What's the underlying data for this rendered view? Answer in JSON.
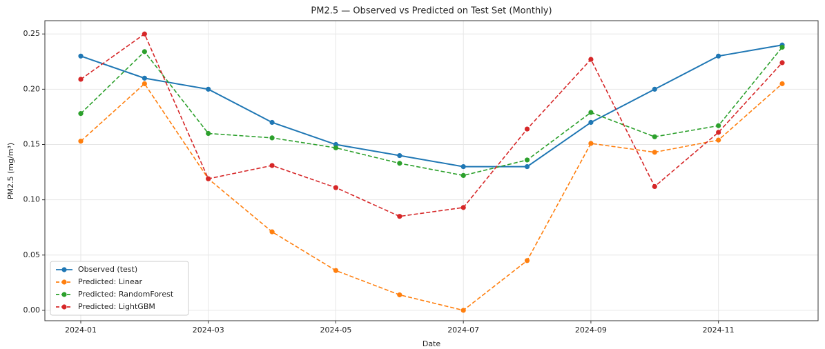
{
  "chart_data": {
    "type": "line",
    "title": "PM2.5 — Observed vs Predicted on Test Set (Monthly)",
    "xlabel": "Date",
    "ylabel": "PM2.5 (mg/m³)",
    "x": [
      "2024-01",
      "2024-02",
      "2024-03",
      "2024-04",
      "2024-05",
      "2024-06",
      "2024-07",
      "2024-08",
      "2024-09",
      "2024-10",
      "2024-11",
      "2024-12"
    ],
    "xticks": [
      "2024-01",
      "2024-03",
      "2024-05",
      "2024-07",
      "2024-09",
      "2024-11"
    ],
    "ylim": [
      -0.0094,
      0.262
    ],
    "yticks": [
      {
        "value": 0,
        "label": "0.00"
      },
      0.05,
      {
        "value": 0.1,
        "label": "0.10"
      },
      0.15,
      {
        "value": 0.2,
        "label": "0.20"
      },
      0.25
    ],
    "grid": true,
    "legend": "lower left",
    "series": [
      {
        "name": "Observed (test)",
        "color": "#1f77b4",
        "linestyle": "solid",
        "values": [
          0.23,
          0.21,
          0.2,
          0.17,
          0.15,
          0.14,
          0.13,
          0.13,
          0.17,
          0.2,
          0.23,
          0.24
        ]
      },
      {
        "name": "Predicted: Linear",
        "color": "#ff7f0e",
        "linestyle": "dashed",
        "values": [
          0.153,
          0.205,
          0.119,
          0.071,
          0.036,
          0.014,
          0.0,
          0.045,
          0.151,
          0.143,
          0.154,
          0.205
        ]
      },
      {
        "name": "Predicted: RandomForest",
        "color": "#2ca02c",
        "linestyle": "dashed",
        "values": [
          0.178,
          0.234,
          0.16,
          0.156,
          0.147,
          0.133,
          0.122,
          0.136,
          0.179,
          0.157,
          0.167,
          0.238
        ]
      },
      {
        "name": "Predicted: LightGBM",
        "color": "#d62728",
        "linestyle": "dashed",
        "values": [
          0.209,
          0.25,
          0.119,
          0.131,
          0.111,
          0.085,
          0.093,
          0.164,
          0.227,
          0.112,
          0.161,
          0.224
        ]
      }
    ]
  }
}
